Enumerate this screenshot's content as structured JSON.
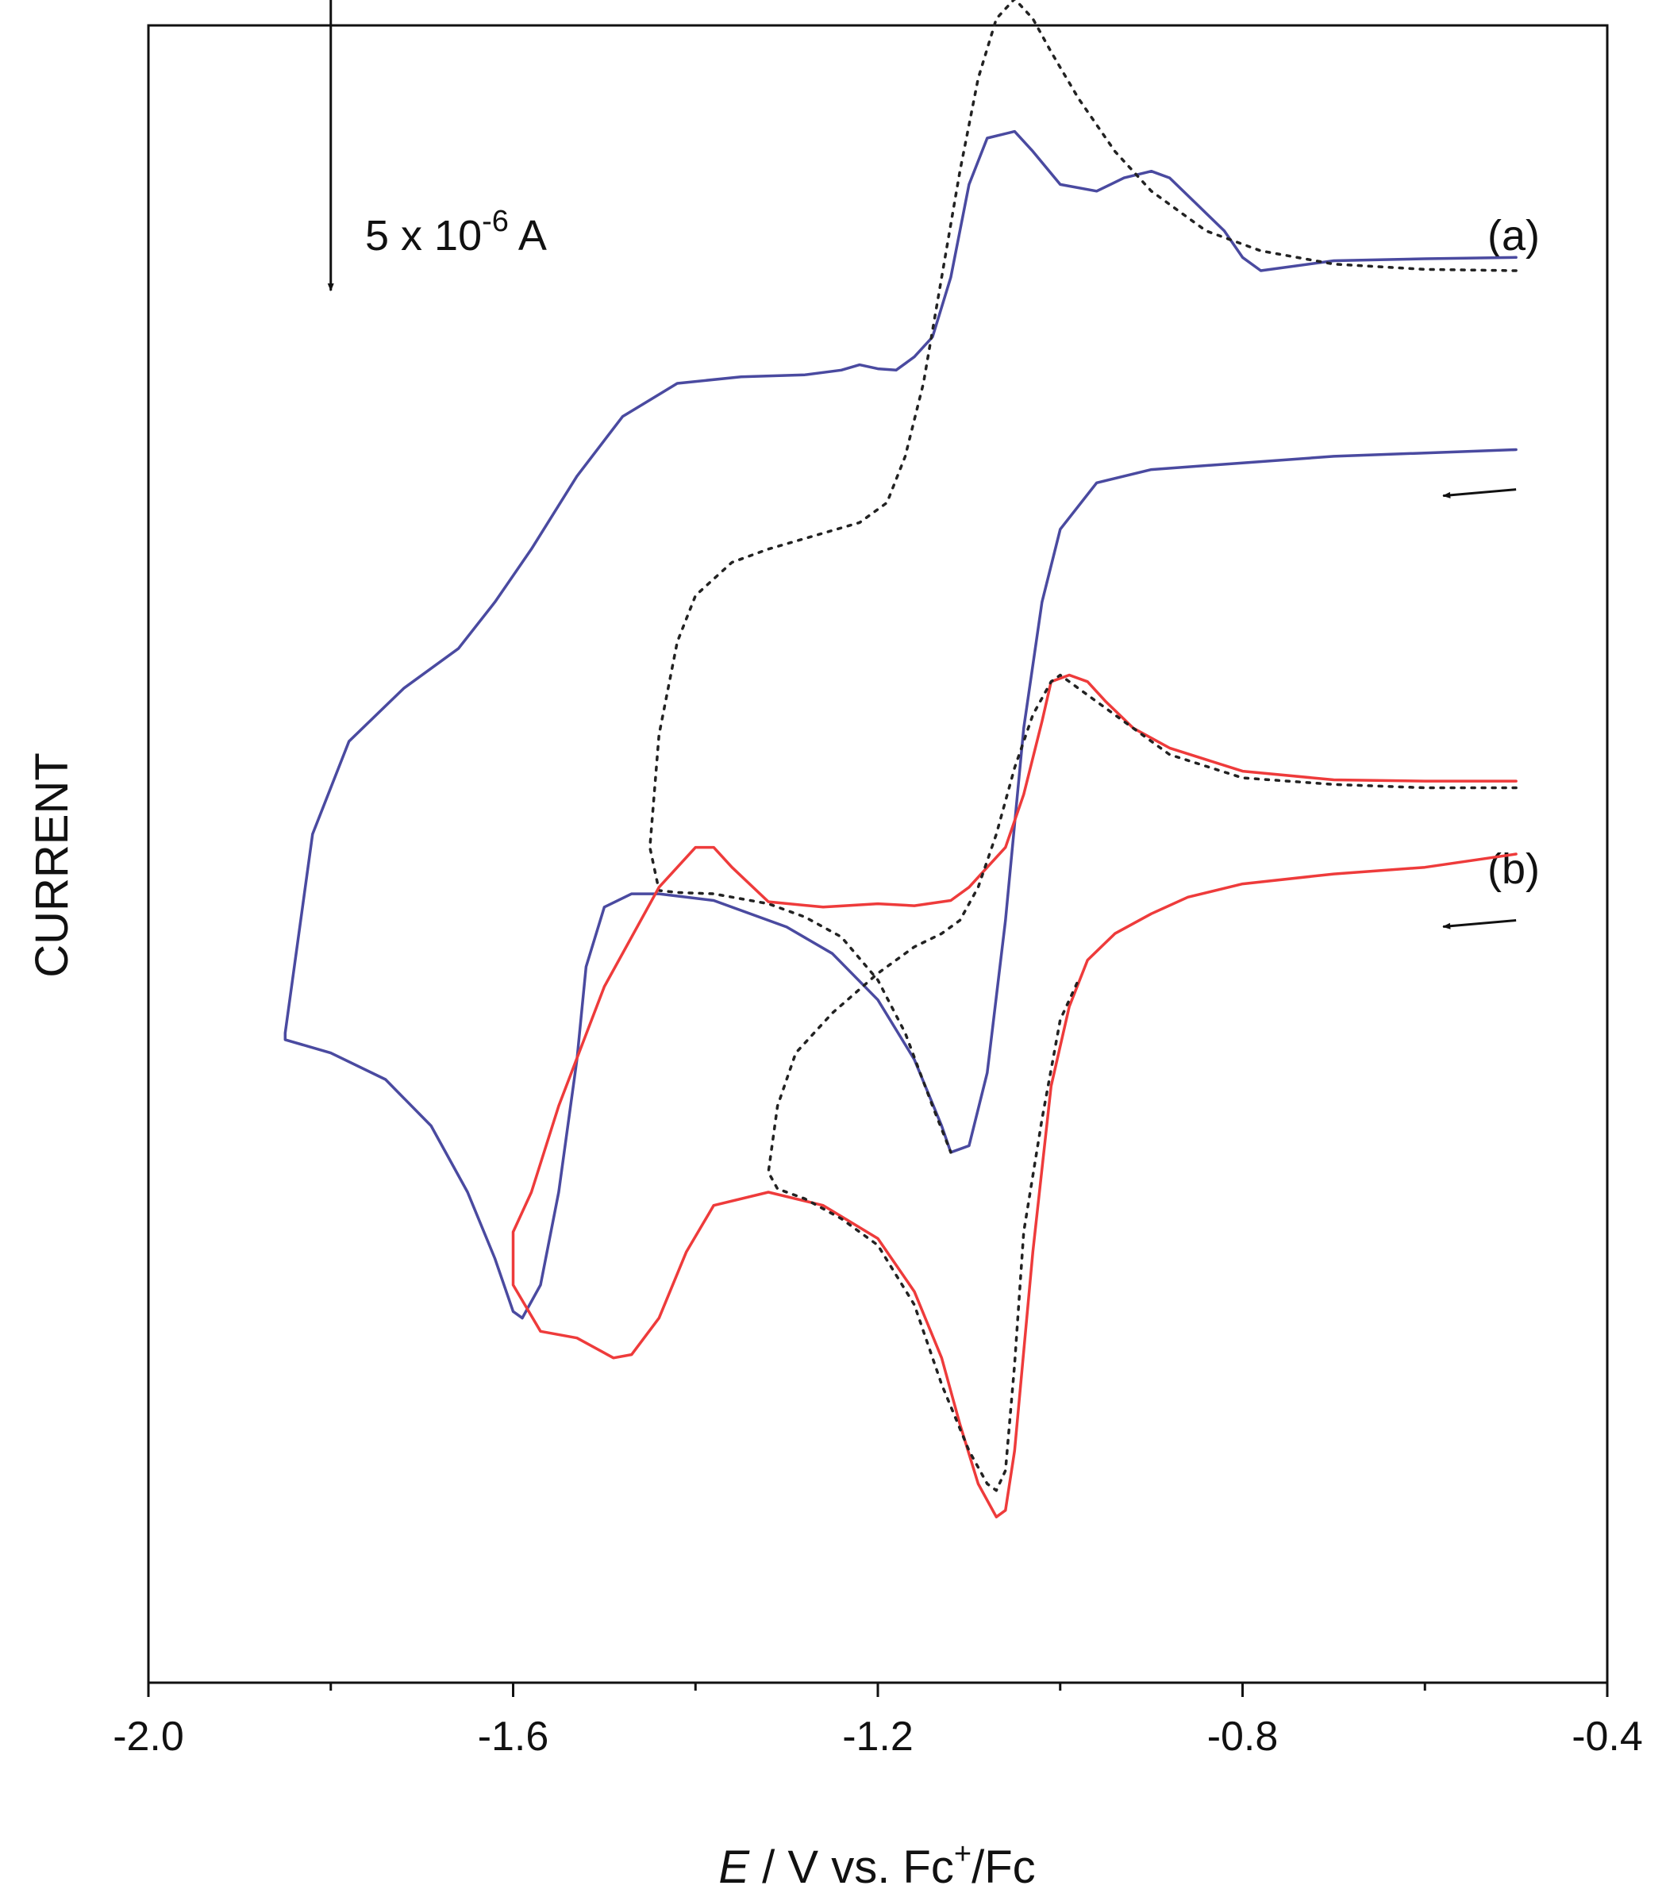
{
  "chart_data": {
    "type": "line",
    "title": "",
    "xlabel": {
      "italic": "E",
      "main": " / V vs. Fc",
      "sup": "+",
      "tail": "/Fc"
    },
    "ylabel": "CURRENT",
    "xlim": [
      -2.0,
      -0.4
    ],
    "ylim": [
      -10,
      15
    ],
    "x_ticks": [
      {
        "value": -2.0,
        "label": "-2.0"
      },
      {
        "value": -1.6,
        "label": "-1.6"
      },
      {
        "value": -1.2,
        "label": "-1.2"
      },
      {
        "value": -0.8,
        "label": "-0.8"
      },
      {
        "value": -0.4,
        "label": "-0.4"
      }
    ],
    "x_minor_ticks": [
      -1.8,
      -1.4,
      -1.0,
      -0.6
    ],
    "scale_bar": {
      "label_base": "5 x 10",
      "label_exp": "-6",
      "label_unit": " A",
      "value": 5
    },
    "scan_arrow_start": -0.5,
    "scan_arrow_end": -0.58,
    "panels": [
      {
        "label": "(a)",
        "series": [
          {
            "name": "(a) solid",
            "color": "#4a4aa0",
            "dash": "solid",
            "x": [
              -0.5,
              -0.6,
              -0.7,
              -0.78,
              -0.8,
              -0.82,
              -0.85,
              -0.88,
              -0.9,
              -0.93,
              -0.96,
              -1.0,
              -1.03,
              -1.05,
              -1.08,
              -1.1,
              -1.12,
              -1.14,
              -1.16,
              -1.18,
              -1.2,
              -1.22,
              -1.24,
              -1.28,
              -1.35,
              -1.42,
              -1.48,
              -1.53,
              -1.58,
              -1.62,
              -1.66,
              -1.72,
              -1.78,
              -1.82,
              -1.84,
              -1.85,
              -1.85,
              -1.8,
              -1.74,
              -1.69,
              -1.65,
              -1.62,
              -1.6,
              -1.59,
              -1.57,
              -1.55,
              -1.53,
              -1.52,
              -1.5,
              -1.47,
              -1.44,
              -1.38,
              -1.3,
              -1.25,
              -1.2,
              -1.16,
              -1.13,
              -1.12,
              -1.1,
              -1.08,
              -1.06,
              -1.04,
              -1.02,
              -1.0,
              -0.96,
              -0.9,
              -0.8,
              -0.7,
              -0.6,
              -0.5
            ],
            "y": [
              11.5,
              11.48,
              11.45,
              11.3,
              11.5,
              11.9,
              12.3,
              12.7,
              12.8,
              12.7,
              12.5,
              12.6,
              13.1,
              13.4,
              13.3,
              12.6,
              11.2,
              10.3,
              10.0,
              9.8,
              9.82,
              9.88,
              9.8,
              9.73,
              9.7,
              9.6,
              9.1,
              8.2,
              7.1,
              6.3,
              5.6,
              5.0,
              4.2,
              2.8,
              0.8,
              -0.2,
              -0.3,
              -0.5,
              -0.9,
              -1.6,
              -2.6,
              -3.6,
              -4.4,
              -4.5,
              -4.0,
              -2.6,
              -0.6,
              0.8,
              1.7,
              1.9,
              1.9,
              1.8,
              1.4,
              1.0,
              0.3,
              -0.6,
              -1.6,
              -2.0,
              -1.9,
              -0.8,
              1.5,
              4.4,
              6.3,
              7.4,
              8.1,
              8.3,
              8.4,
              8.5,
              8.55,
              8.6
            ]
          },
          {
            "name": "(a) dotted",
            "color": "#222222",
            "dash": "dotted",
            "x": [
              -0.5,
              -0.6,
              -0.7,
              -0.78,
              -0.84,
              -0.9,
              -0.94,
              -0.98,
              -1.01,
              -1.03,
              -1.05,
              -1.07,
              -1.09,
              -1.11,
              -1.13,
              -1.15,
              -1.17,
              -1.19,
              -1.22,
              -1.27,
              -1.32,
              -1.36,
              -1.4,
              -1.42,
              -1.44,
              -1.45,
              -1.44,
              -1.42,
              -1.38,
              -1.32,
              -1.28,
              -1.24,
              -1.2,
              -1.17,
              -1.14,
              -1.12
            ],
            "y": [
              11.3,
              11.32,
              11.4,
              11.6,
              11.9,
              12.5,
              13.1,
              13.9,
              14.6,
              15.1,
              15.4,
              15.1,
              14.2,
              12.8,
              11.2,
              9.6,
              8.5,
              7.8,
              7.5,
              7.3,
              7.1,
              6.9,
              6.4,
              5.7,
              4.3,
              2.6,
              1.95,
              1.92,
              1.9,
              1.75,
              1.55,
              1.25,
              0.6,
              -0.2,
              -1.3,
              -2.0
            ]
          }
        ]
      },
      {
        "label": "(b)",
        "series": [
          {
            "name": "(b) solid",
            "color": "#ee3b3b",
            "dash": "solid",
            "x": [
              -0.5,
              -0.6,
              -0.7,
              -0.8,
              -0.88,
              -0.92,
              -0.95,
              -0.97,
              -0.99,
              -1.01,
              -1.02,
              -1.04,
              -1.06,
              -1.08,
              -1.1,
              -1.12,
              -1.16,
              -1.2,
              -1.26,
              -1.32,
              -1.36,
              -1.38,
              -1.4,
              -1.44,
              -1.5,
              -1.55,
              -1.58,
              -1.6,
              -1.6,
              -1.57,
              -1.53,
              -1.49,
              -1.47,
              -1.44,
              -1.41,
              -1.38,
              -1.32,
              -1.26,
              -1.2,
              -1.16,
              -1.13,
              -1.11,
              -1.09,
              -1.07,
              -1.06,
              -1.05,
              -1.03,
              -1.01,
              -0.99,
              -0.97,
              -0.94,
              -0.9,
              -0.86,
              -0.8,
              -0.7,
              -0.6,
              -0.5
            ],
            "y": [
              3.6,
              3.6,
              3.62,
              3.75,
              4.1,
              4.4,
              4.8,
              5.1,
              5.2,
              5.1,
              4.5,
              3.4,
              2.6,
              2.3,
              2.0,
              1.8,
              1.72,
              1.75,
              1.7,
              1.78,
              2.3,
              2.6,
              2.6,
              2.0,
              0.5,
              -1.3,
              -2.6,
              -3.2,
              -4.0,
              -4.7,
              -4.8,
              -5.1,
              -5.05,
              -4.5,
              -3.5,
              -2.8,
              -2.6,
              -2.8,
              -3.3,
              -4.1,
              -5.1,
              -6.1,
              -7.0,
              -7.5,
              -7.4,
              -6.5,
              -3.5,
              -1.0,
              0.2,
              0.9,
              1.3,
              1.6,
              1.85,
              2.05,
              2.2,
              2.3,
              2.5
            ]
          },
          {
            "name": "(b) dotted",
            "color": "#222222",
            "dash": "dotted",
            "x": [
              -0.5,
              -0.6,
              -0.7,
              -0.8,
              -0.88,
              -0.93,
              -0.97,
              -0.99,
              -1.0,
              -1.01,
              -1.03,
              -1.05,
              -1.07,
              -1.09,
              -1.11,
              -1.13,
              -1.16,
              -1.2,
              -1.25,
              -1.29,
              -1.31,
              -1.32,
              -1.31,
              -1.28,
              -1.24,
              -1.2,
              -1.16,
              -1.13,
              -1.1,
              -1.08,
              -1.07,
              -1.06,
              -1.05,
              -1.04,
              -1.02,
              -1.0,
              -0.98
            ],
            "y": [
              3.5,
              3.5,
              3.55,
              3.65,
              4.0,
              4.5,
              4.9,
              5.1,
              5.2,
              5.1,
              4.6,
              3.8,
              2.8,
              2.0,
              1.5,
              1.3,
              1.1,
              0.7,
              0.1,
              -0.5,
              -1.3,
              -2.3,
              -2.55,
              -2.7,
              -3.0,
              -3.4,
              -4.3,
              -5.5,
              -6.5,
              -7.0,
              -7.1,
              -6.8,
              -5.2,
              -3.2,
              -1.5,
              0.0,
              0.6
            ]
          }
        ]
      }
    ]
  }
}
